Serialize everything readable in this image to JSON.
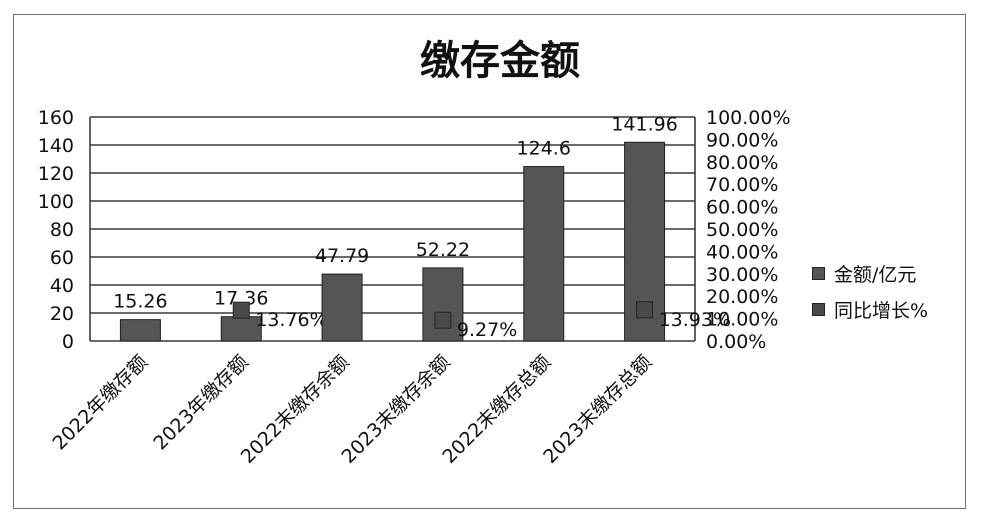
{
  "chart_data": {
    "type": "bar",
    "title": "缴存金额",
    "categories": [
      "2022年缴存额",
      "2023年缴存额",
      "2022末缴存余额",
      "2023末缴存余额",
      "2022末缴存总额",
      "2023末缴存总额"
    ],
    "series": [
      {
        "name": "金额/亿元",
        "axis": "left",
        "values": [
          15.26,
          17.36,
          47.79,
          52.22,
          124.6,
          141.96
        ],
        "labels": [
          "15.26",
          "17.36",
          "47.79",
          "52.22",
          "124.6",
          "141.96"
        ],
        "color": "#555555"
      },
      {
        "name": "同比增长%",
        "axis": "right",
        "values": [
          null,
          13.76,
          null,
          9.27,
          null,
          13.93
        ],
        "labels": [
          null,
          "13.76%",
          null,
          "9.27%",
          null,
          "13.93%"
        ],
        "color": "#4a4a4a"
      }
    ],
    "y_left": {
      "min": 0,
      "max": 160,
      "ticks": [
        "0",
        "20",
        "40",
        "60",
        "80",
        "100",
        "120",
        "140",
        "160"
      ]
    },
    "y_right": {
      "min": 0,
      "max": 100,
      "ticks": [
        "0.00%",
        "10.00%",
        "20.00%",
        "30.00%",
        "40.00%",
        "50.00%",
        "60.00%",
        "70.00%",
        "80.00%",
        "90.00%",
        "100.00%"
      ]
    },
    "grid": true,
    "legend_position": "right"
  }
}
